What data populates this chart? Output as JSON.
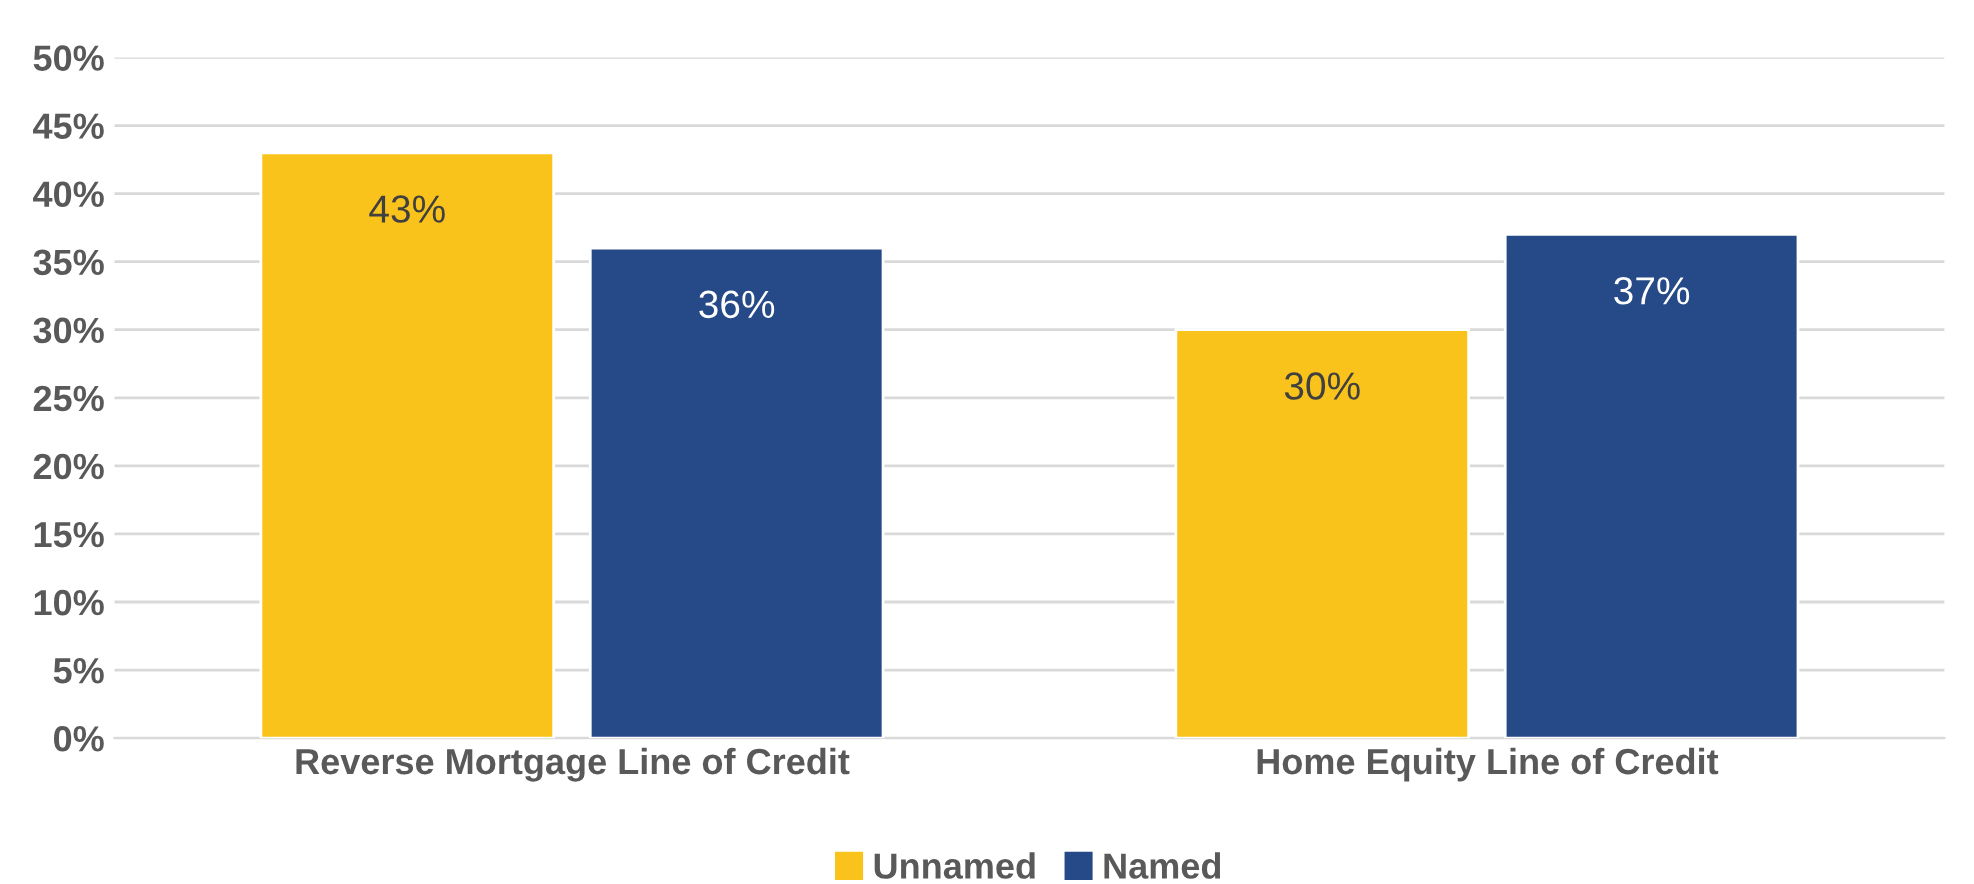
{
  "chart_data": {
    "type": "bar",
    "categories": [
      "Reverse Mortgage Line of Credit",
      "Home Equity Line of Credit"
    ],
    "series": [
      {
        "name": "Unnamed",
        "color": "#f9c31b",
        "values": [
          43,
          30
        ],
        "value_labels": [
          "43%",
          "30%"
        ]
      },
      {
        "name": "Named",
        "color": "#264a87",
        "values": [
          36,
          37
        ],
        "value_labels": [
          "36%",
          "37%"
        ]
      }
    ],
    "ylim": [
      0,
      50
    ],
    "yticks": [
      {
        "value": 0,
        "label": "0%"
      },
      {
        "value": 5,
        "label": "5%"
      },
      {
        "value": 10,
        "label": "10%"
      },
      {
        "value": 15,
        "label": "15%"
      },
      {
        "value": 20,
        "label": "20%"
      },
      {
        "value": 25,
        "label": "25%"
      },
      {
        "value": 30,
        "label": "30%"
      },
      {
        "value": 35,
        "label": "35%"
      },
      {
        "value": 40,
        "label": "40%"
      },
      {
        "value": 45,
        "label": "45%"
      },
      {
        "value": 50,
        "label": "50%"
      }
    ],
    "grid": "y",
    "legend": "bottom"
  }
}
